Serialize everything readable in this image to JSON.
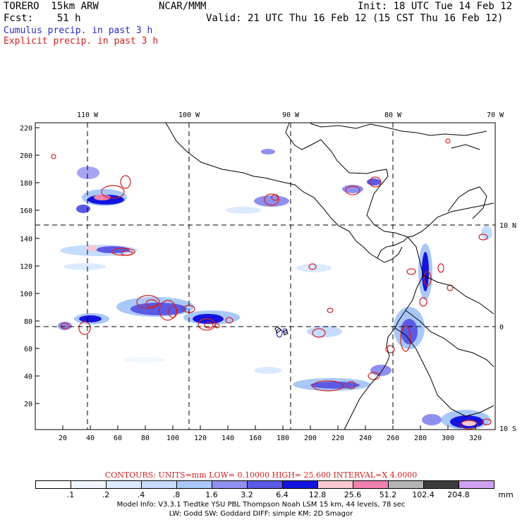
{
  "header": {
    "model": "TORERO  15km ARW",
    "org": "NCAR/MMM",
    "init": "Init: 18 UTC Tue 14 Feb 12",
    "fcst": "Fcst:    51 h",
    "valid": "Valid: 21 UTC Thu 16 Feb 12 (15 CST Thu 16 Feb 12)",
    "legend_cumulus": "Cumulus precip. in past 3 h",
    "legend_explicit": "Explicit precip. in past 3 h"
  },
  "map": {
    "top_lon_labels": [
      "110 W",
      "100 W",
      "90 W",
      "80 W",
      "70 W"
    ],
    "left_y_ticks": [
      "220",
      "200",
      "180",
      "160",
      "140",
      "120",
      "100",
      "80",
      "60",
      "40",
      "20"
    ],
    "bottom_x_ticks": [
      "20",
      "40",
      "60",
      "80",
      "100",
      "120",
      "140",
      "160",
      "180",
      "200",
      "220",
      "240",
      "260",
      "280",
      "300",
      "320"
    ],
    "right_lat_labels": [
      "10 N",
      "0",
      "10 S"
    ]
  },
  "contours": {
    "label": "CONTOURS:  UNITS=mm  LOW= 0.10000      HIGH=  25.600      INTERVAL=X  4.0000"
  },
  "colorbar": {
    "colors": [
      "#ffffff",
      "#f0f5ff",
      "#dceaff",
      "#c6dcff",
      "#a9c8f7",
      "#8f8ff0",
      "#5a5ae6",
      "#1414e0",
      "#fac8d0",
      "#f080b0",
      "#b4b4b4",
      "#3c3c3c",
      "#d2a0f0"
    ],
    "labels": [
      ".1",
      ".2",
      ".4",
      ".8",
      "1.6",
      "3.2",
      "6.4",
      "12.8",
      "25.6",
      "51.2",
      "102.4",
      "204.8"
    ],
    "unit": "mm"
  },
  "model_info": {
    "line1": "Model Info: V3.3.1    Tiedtke YSU PBL   Thompson    Noah LSM  15 km,   44 levels,   78 sec",
    "line2": "LW: Godd SW: Goddard DIFF: simple KM: 2D Smagor"
  }
}
